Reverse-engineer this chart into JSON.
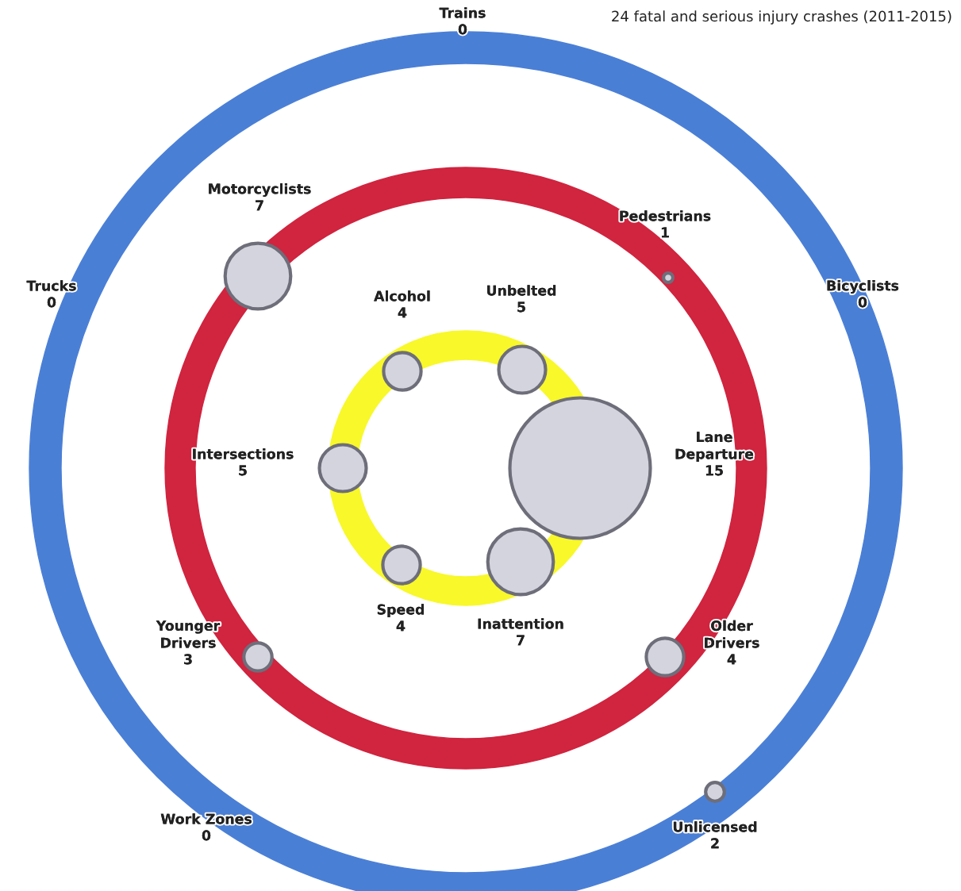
{
  "chart_data": {
    "type": "other",
    "title": "24 fatal and serious injury crashes (2011-2015)",
    "data_labels": true,
    "categories": [
      "Trains",
      "Bicyclists",
      "Unlicensed",
      "Work Zones",
      "Trucks",
      "Motorcyclists",
      "Pedestrians",
      "Lane Departure",
      "Older Drivers",
      "Younger Drivers",
      "Intersections",
      "Alcohol",
      "Unbelted",
      "Inattention",
      "Speed"
    ],
    "values": [
      0,
      0,
      2,
      0,
      0,
      7,
      1,
      15,
      4,
      3,
      5,
      4,
      5,
      7,
      4
    ],
    "colors": [
      "#4a7fd6",
      "#4a7fd6",
      "#4a7fd6",
      "#4a7fd6",
      "#4a7fd6",
      "#d0243f",
      "#d0243f",
      "#d0243f",
      "#d0243f",
      "#d0243f",
      "#d0243f",
      "#f8f82a",
      "#f8f82a",
      "#f8f82a",
      "#f8f82a"
    ]
  }
}
